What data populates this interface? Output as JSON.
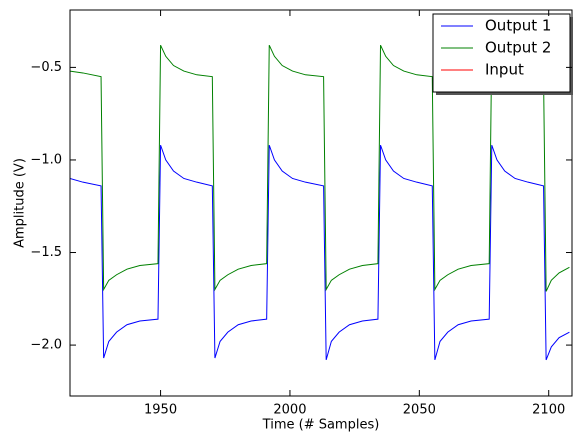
{
  "chart_data": {
    "type": "line",
    "x_label": "Time (# Samples)",
    "y_label": "Amplitude (V)",
    "x": [
      1915,
      1920,
      1927,
      1928,
      1930,
      1933,
      1937,
      1942,
      1949,
      1950,
      1952,
      1955,
      1959,
      1964,
      1970,
      1971,
      1973,
      1976,
      1980,
      1985,
      1991,
      1992,
      1994,
      1997,
      2001,
      2006,
      2013,
      2014,
      2016,
      2019,
      2023,
      2028,
      2034,
      2035,
      2037,
      2040,
      2044,
      2049,
      2055,
      2056,
      2058,
      2061,
      2065,
      2070,
      2077,
      2078,
      2080,
      2083,
      2087,
      2092,
      2098,
      2099,
      2101,
      2104,
      2108
    ],
    "series": [
      {
        "name": "Output 1",
        "color": "#0000ff",
        "values": [
          -1.1,
          -1.12,
          -1.14,
          -2.07,
          -1.98,
          -1.93,
          -1.89,
          -1.87,
          -1.86,
          -0.92,
          -1.0,
          -1.06,
          -1.1,
          -1.12,
          -1.14,
          -2.07,
          -1.98,
          -1.93,
          -1.89,
          -1.87,
          -1.86,
          -0.92,
          -1.0,
          -1.06,
          -1.1,
          -1.12,
          -1.14,
          -2.08,
          -1.98,
          -1.93,
          -1.89,
          -1.87,
          -1.86,
          -0.92,
          -1.0,
          -1.06,
          -1.1,
          -1.12,
          -1.14,
          -2.08,
          -1.98,
          -1.93,
          -1.89,
          -1.87,
          -1.86,
          -0.92,
          -1.0,
          -1.06,
          -1.1,
          -1.12,
          -1.14,
          -2.08,
          -2.01,
          -1.96,
          -1.93
        ]
      },
      {
        "name": "Output 2",
        "color": "#008000",
        "values": [
          -0.52,
          -0.53,
          -0.55,
          -1.7,
          -1.65,
          -1.62,
          -1.59,
          -1.57,
          -1.56,
          -0.38,
          -0.44,
          -0.49,
          -0.52,
          -0.54,
          -0.55,
          -1.7,
          -1.65,
          -1.62,
          -1.59,
          -1.57,
          -1.56,
          -0.38,
          -0.44,
          -0.49,
          -0.52,
          -0.54,
          -0.55,
          -1.7,
          -1.65,
          -1.62,
          -1.59,
          -1.57,
          -1.56,
          -0.38,
          -0.44,
          -0.49,
          -0.52,
          -0.54,
          -0.55,
          -1.7,
          -1.65,
          -1.62,
          -1.59,
          -1.57,
          -1.56,
          -0.38,
          -0.44,
          -0.49,
          -0.52,
          -0.54,
          -0.55,
          -1.71,
          -1.65,
          -1.61,
          -1.58
        ]
      },
      {
        "name": "Input",
        "color": "#ff0000",
        "values": [
          null,
          null,
          null,
          null,
          null,
          null,
          null,
          null,
          null,
          null,
          null,
          null,
          null,
          null,
          null,
          null,
          null,
          null,
          null,
          null,
          null,
          null,
          null,
          null,
          null,
          null,
          null,
          null,
          null,
          null,
          null,
          null,
          null,
          null,
          null,
          null,
          null,
          null,
          null,
          null,
          null,
          null,
          null,
          null,
          null,
          null,
          null,
          null,
          null,
          null,
          null,
          null,
          null,
          null,
          null
        ]
      }
    ],
    "xlim": [
      1915,
      2109
    ],
    "xticks": [
      1950,
      2000,
      2050,
      2100
    ],
    "ylim": [
      -2.275,
      -0.19
    ],
    "yticks": [
      {
        "value": -2.0,
        "label": "−2.0"
      },
      {
        "value": -1.5,
        "label": "−1.5"
      },
      {
        "value": -1.0,
        "label": "−1.0"
      },
      {
        "value": -0.5,
        "label": "−0.5"
      }
    ],
    "legend": "upper right",
    "grid": false
  }
}
